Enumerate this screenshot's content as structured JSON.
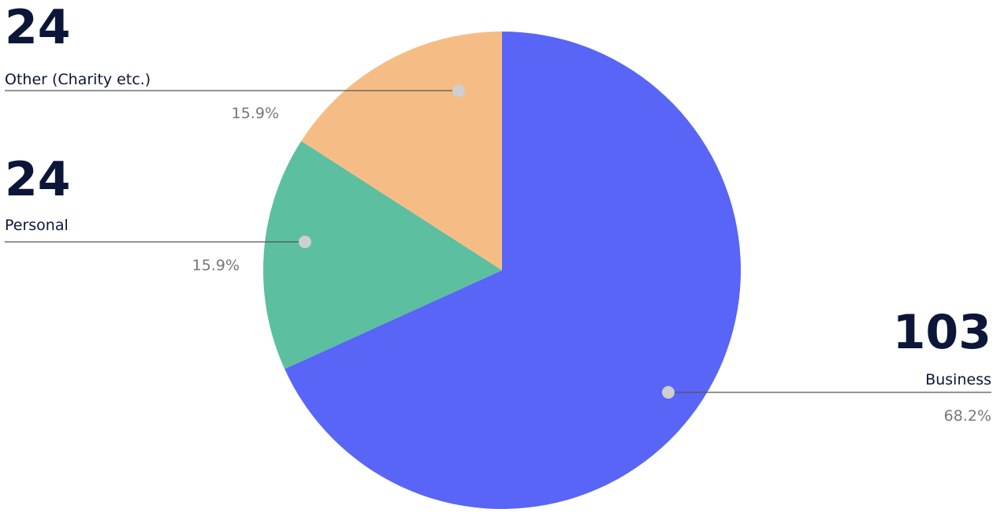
{
  "chart_data": {
    "type": "pie",
    "categories": [
      "Business",
      "Personal",
      "Other (Charity etc.)"
    ],
    "values": [
      103,
      24,
      24
    ],
    "colors": [
      "#5865f7",
      "#5bbfa0",
      "#f5bd85"
    ],
    "percentages": [
      68.2,
      15.9,
      15.9
    ],
    "percentage_labels": [
      "68.2%",
      "15.9%",
      "15.9%"
    ]
  }
}
